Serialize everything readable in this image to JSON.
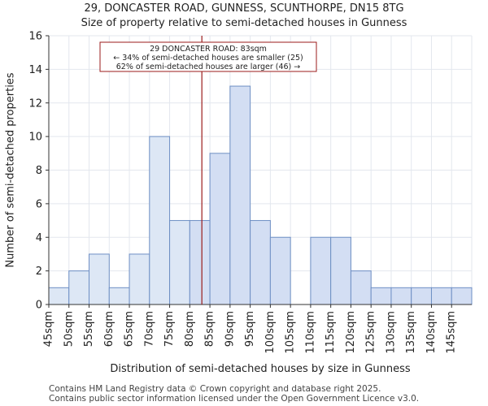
{
  "header": {
    "title": "29, DONCASTER ROAD, GUNNESS, SCUNTHORPE, DN15 8TG",
    "subtitle": "Size of property relative to semi-detached houses in Gunness"
  },
  "footer": {
    "line1": "Contains HM Land Registry data © Crown copyright and database right 2025.",
    "line2": "Contains public sector information licensed under the Open Government Licence v3.0."
  },
  "chart_data": {
    "type": "bar",
    "title": "29, DONCASTER ROAD, GUNNESS, SCUNTHORPE, DN15 8TG",
    "subtitle": "Size of property relative to semi-detached houses in Gunness",
    "xlabel": "Distribution of semi-detached houses by size in Gunness",
    "ylabel": "Number of semi-detached properties",
    "ylim": [
      0,
      16
    ],
    "yticks": [
      0,
      2,
      4,
      6,
      8,
      10,
      12,
      14,
      16
    ],
    "categories": [
      "45sqm",
      "50sqm",
      "55sqm",
      "60sqm",
      "65sqm",
      "70sqm",
      "75sqm",
      "80sqm",
      "85sqm",
      "90sqm",
      "95sqm",
      "100sqm",
      "105sqm",
      "110sqm",
      "115sqm",
      "120sqm",
      "125sqm",
      "130sqm",
      "135sqm",
      "140sqm",
      "145sqm"
    ],
    "bin_edges": [
      45,
      50,
      55,
      60,
      65,
      70,
      75,
      80,
      85,
      90,
      95,
      100,
      105,
      110,
      115,
      120,
      125,
      130,
      135,
      140,
      145,
      150
    ],
    "values": [
      1,
      2,
      3,
      1,
      3,
      10,
      5,
      5,
      9,
      13,
      5,
      4,
      0,
      4,
      4,
      2,
      1,
      1,
      1,
      1,
      1
    ],
    "marker_value": 83,
    "annotation": {
      "line1": "29 DONCASTER ROAD: 83sqm",
      "line2": "← 34% of semi-detached houses are smaller (25)",
      "line3": "62% of semi-detached houses are larger (46) →"
    },
    "grid": true,
    "colors": {
      "bar_smaller": "#dde7f5",
      "bar_larger": "#d3def3",
      "bar_edge": "#6e8fc4",
      "marker": "#9b1b1b",
      "grid": "#e3e7ee"
    }
  }
}
